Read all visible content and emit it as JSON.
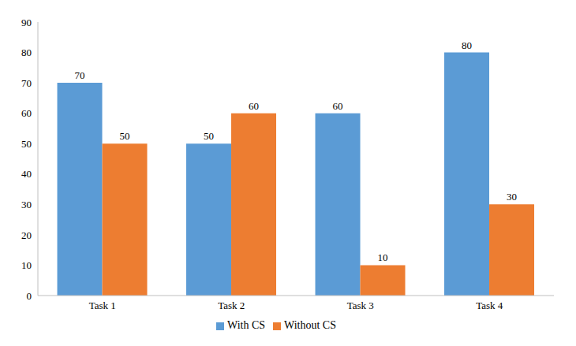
{
  "chart_data": {
    "type": "bar",
    "categories": [
      "Task 1",
      "Task 2",
      "Task 3",
      "Task 4"
    ],
    "series": [
      {
        "name": "With CS",
        "color": "#5b9bd5",
        "values": [
          70,
          50,
          60,
          80
        ]
      },
      {
        "name": "Without CS",
        "color": "#ed7d31",
        "values": [
          50,
          60,
          10,
          30
        ]
      }
    ],
    "ylim": [
      0,
      90
    ],
    "yticks": [
      0,
      10,
      20,
      30,
      40,
      50,
      60,
      70,
      80,
      90
    ],
    "grid": false,
    "data_labels": true,
    "legend": "bottom"
  }
}
